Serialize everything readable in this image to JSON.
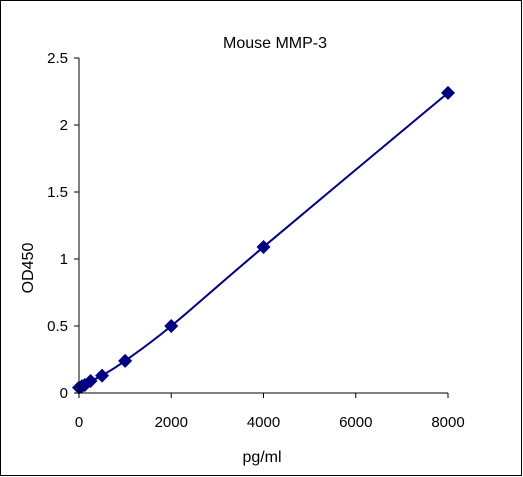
{
  "chart_data": {
    "type": "scatter",
    "title": "Mouse MMP-3",
    "xlabel": "pg/ml",
    "ylabel": "OD450",
    "xlim": [
      0,
      8000
    ],
    "ylim": [
      0,
      2.5
    ],
    "xticks": [
      0,
      2000,
      4000,
      6000,
      8000
    ],
    "yticks": [
      0,
      0.5,
      1,
      1.5,
      2,
      2.5
    ],
    "xtick_labels": [
      "0",
      "2000",
      "4000",
      "6000",
      "8000"
    ],
    "ytick_labels": [
      "0",
      "0.5",
      "1",
      "1.5",
      "2",
      "2.5"
    ],
    "grid": false,
    "legend": false,
    "marker": "diamond",
    "line": "smooth",
    "series": [
      {
        "color": "#000080",
        "x": [
          0,
          62.5,
          125,
          250,
          500,
          1000,
          2000,
          4000,
          8000
        ],
        "y": [
          0.04,
          0.05,
          0.06,
          0.09,
          0.13,
          0.24,
          0.5,
          1.09,
          2.24
        ]
      }
    ]
  }
}
